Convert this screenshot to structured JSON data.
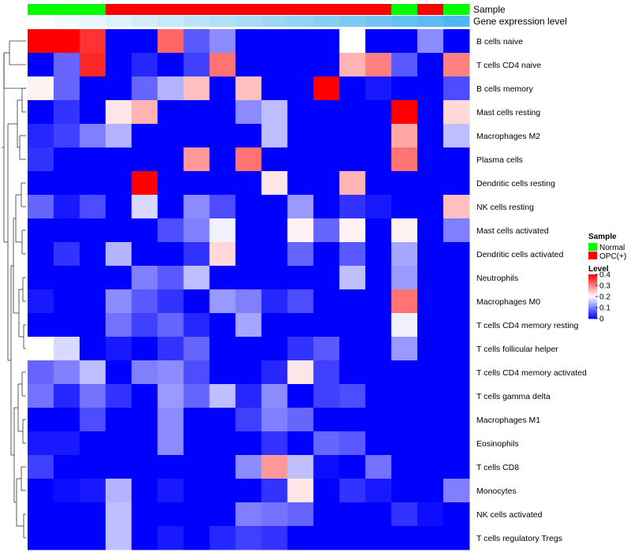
{
  "chart_data": {
    "type": "heatmap",
    "annotation_labels": [
      "Sample",
      "Gene expression level"
    ],
    "sample_groups": [
      "Normal",
      "Normal",
      "Normal",
      "OPC(+)",
      "OPC(+)",
      "OPC(+)",
      "OPC(+)",
      "OPC(+)",
      "OPC(+)",
      "OPC(+)",
      "OPC(+)",
      "OPC(+)",
      "OPC(+)",
      "OPC(+)",
      "Normal",
      "OPC(+)",
      "Normal"
    ],
    "expression_levels": [
      0.0,
      0.06,
      0.12,
      0.19,
      0.25,
      0.31,
      0.38,
      0.44,
      0.5,
      0.56,
      0.62,
      0.69,
      0.75,
      0.81,
      0.88,
      0.94,
      1.0
    ],
    "rows": [
      "B cells naive",
      "T cells CD4 naive",
      "B cells memory",
      "Mast cells resting",
      "Macrophages M2",
      "Plasma cells",
      "Dendritic cells resting",
      "NK cells resting",
      "Mast cells activated",
      "Dendritic cells activated",
      "Neutrophils",
      "Macrophages M0",
      "T cells CD4 memory resting",
      "T cells follicular helper",
      "T cells CD4 memory activated",
      "T cells gamma delta",
      "Macrophages M1",
      "Eosinophils",
      "T cells CD8",
      "Monocytes",
      "NK cells activated",
      "T cells regulatory  Tregs"
    ],
    "values": [
      [
        0.4,
        0.4,
        0.36,
        0,
        0,
        0.32,
        0.07,
        0.11,
        0,
        0,
        0,
        0,
        0.2,
        0,
        0,
        0.11,
        0
      ],
      [
        0,
        0.08,
        0.37,
        0,
        0.03,
        0,
        0.05,
        0.31,
        0,
        0,
        0,
        0,
        0.26,
        0.3,
        0.07,
        0,
        0.3
      ],
      [
        0.21,
        0.08,
        0,
        0,
        0.08,
        0.14,
        0.25,
        0,
        0.25,
        0,
        0,
        0.4,
        0,
        0.02,
        0,
        0,
        0.06
      ],
      [
        0,
        0.04,
        0,
        0.22,
        0.26,
        0,
        0,
        0,
        0.11,
        0.15,
        0,
        0,
        0,
        0,
        0.4,
        0,
        0.23
      ],
      [
        0.03,
        0.05,
        0.1,
        0.14,
        0,
        0,
        0,
        0,
        0,
        0.15,
        0,
        0,
        0,
        0,
        0.27,
        0,
        0.15
      ],
      [
        0.04,
        0,
        0,
        0,
        0,
        0,
        0.28,
        0,
        0.31,
        0,
        0,
        0,
        0,
        0,
        0.31,
        0,
        0
      ],
      [
        0,
        0,
        0,
        0,
        0.4,
        0,
        0,
        0,
        0,
        0.22,
        0,
        0,
        0.26,
        0,
        0,
        0,
        0
      ],
      [
        0.08,
        0.02,
        0.06,
        0,
        0.17,
        0,
        0.11,
        0.06,
        0,
        0,
        0.12,
        0,
        0.04,
        0.02,
        0,
        0,
        0.25
      ],
      [
        0,
        0,
        0,
        0,
        0,
        0.06,
        0.1,
        0.19,
        0,
        0,
        0.21,
        0.08,
        0.21,
        0,
        0.21,
        0,
        0.1
      ],
      [
        0,
        0.04,
        0,
        0.14,
        0,
        0,
        0.04,
        0.23,
        0,
        0,
        0.08,
        0,
        0.07,
        0,
        0.13,
        0,
        0
      ],
      [
        0,
        0,
        0,
        0,
        0.1,
        0.07,
        0.15,
        0,
        0,
        0,
        0,
        0,
        0.15,
        0,
        0.12,
        0,
        0
      ],
      [
        0.02,
        0,
        0,
        0.11,
        0.07,
        0.04,
        0,
        0.12,
        0.1,
        0.03,
        0.06,
        0,
        0,
        0,
        0.31,
        0,
        0
      ],
      [
        0,
        0,
        0,
        0.09,
        0.05,
        0.08,
        0.03,
        0,
        0.13,
        0,
        0,
        0,
        0,
        0,
        0.19,
        0,
        0
      ],
      [
        0.2,
        0.17,
        0,
        0.02,
        0,
        0.04,
        0.08,
        0,
        0,
        0,
        0.04,
        0.07,
        0,
        0,
        0.12,
        0,
        0
      ],
      [
        0.08,
        0.1,
        0.15,
        0,
        0.1,
        0.11,
        0.06,
        0,
        0,
        0.03,
        0.22,
        0.05,
        0,
        0,
        0,
        0,
        0
      ],
      [
        0.09,
        0.03,
        0.09,
        0.04,
        0,
        0.12,
        0.08,
        0.15,
        0.03,
        0.11,
        0,
        0.05,
        0.06,
        0,
        0,
        0,
        0
      ],
      [
        0,
        0,
        0.06,
        0,
        0,
        0.11,
        0,
        0,
        0.05,
        0.1,
        0.08,
        0,
        0,
        0,
        0,
        0,
        0
      ],
      [
        0.02,
        0.02,
        0,
        0,
        0,
        0.11,
        0,
        0,
        0,
        0.04,
        0,
        0.08,
        0.07,
        0,
        0,
        0,
        0
      ],
      [
        0.05,
        0,
        0,
        0,
        0,
        0,
        0,
        0,
        0.11,
        0.28,
        0.15,
        0.01,
        0,
        0.09,
        0,
        0,
        0
      ],
      [
        0,
        0.01,
        0.02,
        0.14,
        0,
        0.02,
        0,
        0,
        0,
        0.04,
        0.22,
        0,
        0.04,
        0.02,
        0,
        0,
        0.1
      ],
      [
        0,
        0,
        0,
        0.15,
        0,
        0,
        0,
        0,
        0.1,
        0.09,
        0.08,
        0,
        0,
        0,
        0.04,
        0.01,
        0
      ],
      [
        0,
        0,
        0,
        0.15,
        0,
        0.02,
        0,
        0.03,
        0.05,
        0.04,
        0,
        0,
        0,
        0,
        0,
        0,
        0
      ]
    ],
    "legend": {
      "sample_title": "Sample",
      "sample_items": [
        {
          "label": "Normal",
          "color": "#00ff00"
        },
        {
          "label": "OPC(+)",
          "color": "#ff0000"
        }
      ],
      "level_title": "Level",
      "level_ticks": [
        {
          "value": 0.4,
          "label": "0.4"
        },
        {
          "value": 0.3,
          "label": "0.3"
        },
        {
          "value": 0.2,
          "label": "0.2"
        },
        {
          "value": 0.1,
          "label": "0.1"
        },
        {
          "value": 0,
          "label": "0"
        }
      ],
      "placement": "right"
    },
    "color_scale": {
      "low": "#0000ff",
      "mid": "#ffffff",
      "high": "#ff0000",
      "min": 0,
      "max": 0.4
    },
    "expression_scale": {
      "low": "#ffffff",
      "high": "#4fb8f2"
    },
    "dendrogram": "left",
    "grid": false
  }
}
